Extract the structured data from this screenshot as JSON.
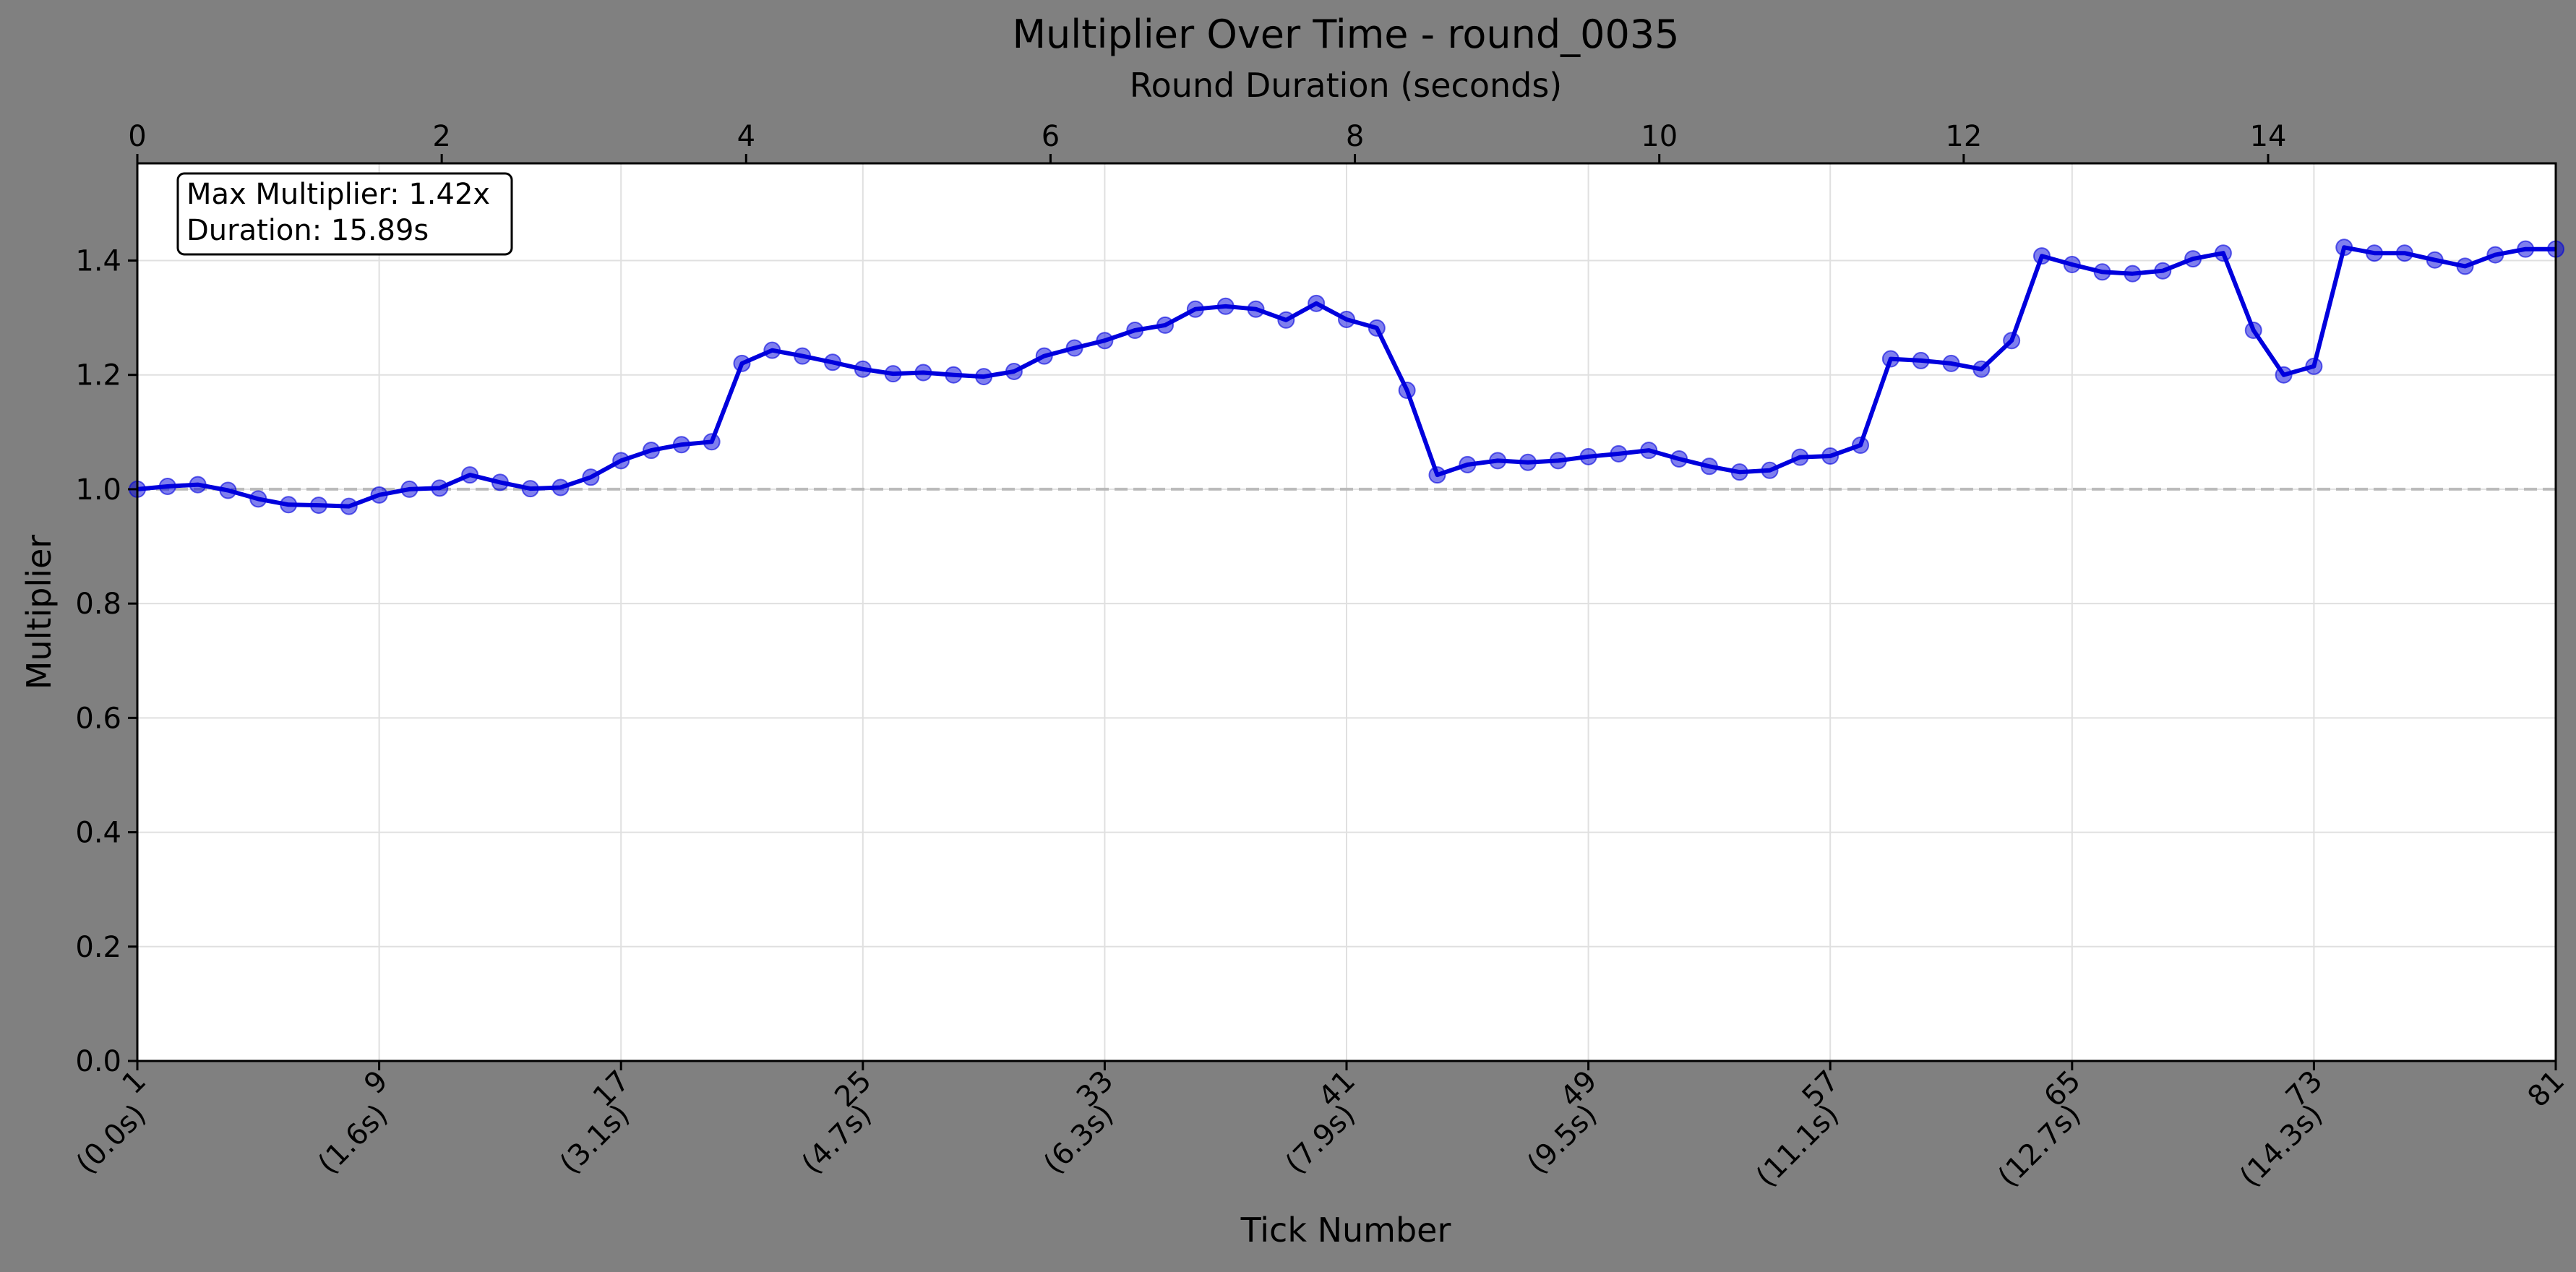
{
  "chart_data": {
    "type": "line",
    "title": "Multiplier Over Time - round_0035",
    "xlabel": "Tick Number",
    "ylabel": "Multiplier",
    "top_xlabel": "Round Duration (seconds)",
    "xlim": [
      1,
      81
    ],
    "ylim": [
      0,
      1.57
    ],
    "top_xlim": [
      0,
      15.89
    ],
    "grid": true,
    "yticks": [
      "0.0",
      "0.2",
      "0.4",
      "0.6",
      "0.8",
      "1.0",
      "1.2",
      "1.4"
    ],
    "ytick_values": [
      0,
      0.2,
      0.4,
      0.6,
      0.8,
      1.0,
      1.2,
      1.4
    ],
    "top_xticks": [
      "0",
      "2",
      "4",
      "6",
      "8",
      "10",
      "12",
      "14"
    ],
    "top_xtick_values": [
      0,
      2,
      4,
      6,
      8,
      10,
      12,
      14
    ],
    "bottom_xtick_values": [
      1,
      9,
      17,
      25,
      33,
      41,
      49,
      57,
      65,
      73,
      81
    ],
    "bottom_xticks": [
      [
        "1",
        "(0.0s)"
      ],
      [
        "9",
        "(1.6s)"
      ],
      [
        "17",
        "(3.1s)"
      ],
      [
        "25",
        "(4.7s)"
      ],
      [
        "33",
        "(6.3s)"
      ],
      [
        "41",
        "(7.9s)"
      ],
      [
        "49",
        "(9.5s)"
      ],
      [
        "57",
        "(11.1s)"
      ],
      [
        "65",
        "(12.7s)"
      ],
      [
        "73",
        "(14.3s)"
      ],
      [
        "81",
        ""
      ]
    ],
    "reference_line": 1.0,
    "annotation": [
      "Max Multiplier: 1.42x",
      "Duration: 15.89s"
    ],
    "series": [
      {
        "color": "#0000dd",
        "values": [
          1.0,
          1.005,
          1.008,
          0.998,
          0.983,
          0.973,
          0.972,
          0.97,
          0.99,
          1.0,
          1.002,
          1.025,
          1.012,
          1.001,
          1.003,
          1.021,
          1.05,
          1.068,
          1.078,
          1.083,
          1.22,
          1.243,
          1.233,
          1.222,
          1.21,
          1.202,
          1.204,
          1.2,
          1.197,
          1.206,
          1.233,
          1.247,
          1.26,
          1.278,
          1.287,
          1.315,
          1.32,
          1.315,
          1.296,
          1.325,
          1.297,
          1.282,
          1.173,
          1.025,
          1.043,
          1.05,
          1.047,
          1.05,
          1.057,
          1.062,
          1.068,
          1.053,
          1.04,
          1.03,
          1.033,
          1.056,
          1.058,
          1.077,
          1.228,
          1.225,
          1.22,
          1.21,
          1.26,
          1.408,
          1.393,
          1.38,
          1.377,
          1.382,
          1.403,
          1.413,
          1.278,
          1.2,
          1.215,
          1.423,
          1.413,
          1.413,
          1.401,
          1.39,
          1.41,
          1.42,
          1.42
        ]
      }
    ]
  }
}
